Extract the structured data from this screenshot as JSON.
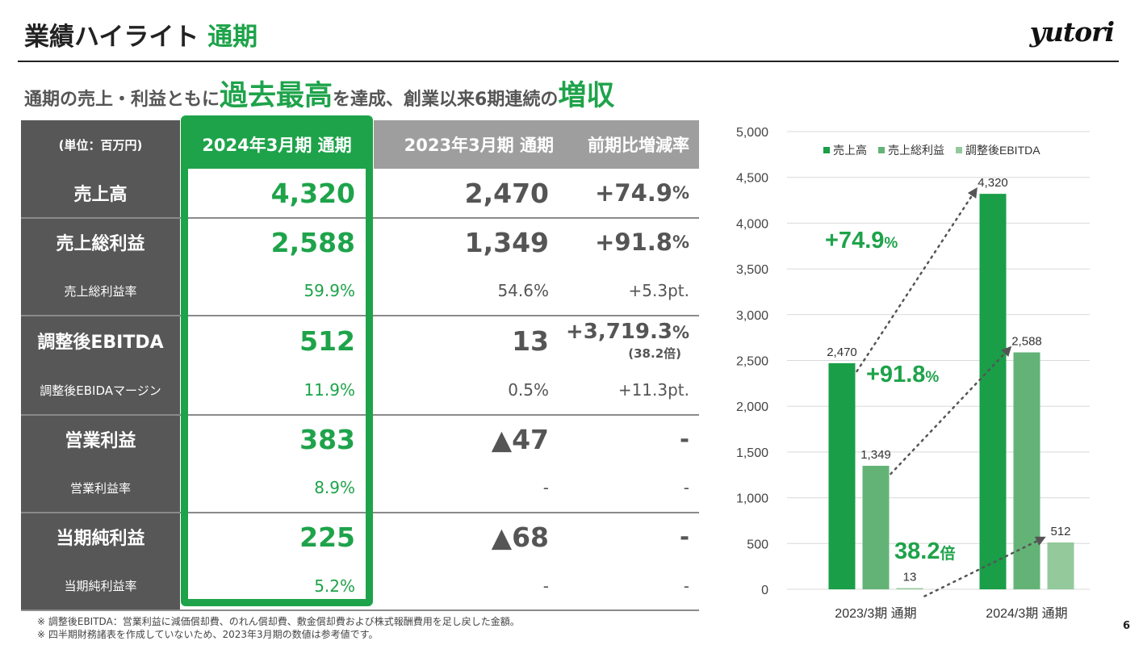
{
  "header": {
    "title": "業績ハイライト",
    "title_accent": "通期",
    "logo": "yutori",
    "headline_1": "通期の売上・利益ともに",
    "headline_2": "過去最高",
    "headline_3": "を達成、創業以来6期連続の",
    "headline_4": "増収"
  },
  "table": {
    "columns": [
      "(単位：百万円)",
      "2024年3月期 通期",
      "2023年3月期 通期",
      "前期比増減率"
    ],
    "rows": [
      {
        "label": "売上高",
        "fy2024": "4,320",
        "fy2023": "2,470",
        "change": "+74.9",
        "change_unit": "%"
      },
      {
        "label": "売上総利益",
        "fy2024": "2,588",
        "fy2023": "1,349",
        "change": "+91.8",
        "change_unit": "%"
      },
      {
        "label": "売上総利益率",
        "fy2024": "59.9%",
        "fy2023": "54.6%",
        "change": "+5.3pt."
      },
      {
        "label": "調整後EBITDA",
        "fy2024": "512",
        "fy2023": "13",
        "change": "+3,719.3",
        "change_unit": "%",
        "change_note": "(38.2倍)"
      },
      {
        "label": "調整後EBIDAマージン",
        "fy2024": "11.9%",
        "fy2023": "0.5%",
        "change": "+11.3pt."
      },
      {
        "label": "営業利益",
        "fy2024": "383",
        "fy2023": "▲47",
        "change": "-"
      },
      {
        "label": "営業利益率",
        "fy2024": "8.9%",
        "fy2023": "-",
        "change": "-"
      },
      {
        "label": "当期純利益",
        "fy2024": "225",
        "fy2023": "▲68",
        "change": "-"
      },
      {
        "label": "当期純利益率",
        "fy2024": "5.2%",
        "fy2023": "-",
        "change": "-"
      }
    ]
  },
  "notes": [
    "※ 調整後EBITDA：営業利益に減価償却費、のれん償却費、敷金償却費および株式報酬費用を足し戻した金額。",
    "※ 四半期財務諸表を作成していないため、2023年3月期の数値は参考値です。"
  ],
  "page_number": "6",
  "colors": {
    "accent": "#1ea34a",
    "header_gray": "#9e9e9e",
    "label_gray": "#575757",
    "bar_sales": "#1a9e48",
    "bar_gross": "#63b377",
    "bar_ebitda": "#93c99b"
  },
  "chart_data": {
    "type": "bar",
    "categories": [
      "2023/3期 通期",
      "2024/3期 通期"
    ],
    "series": [
      {
        "name": "売上高",
        "values": [
          2470,
          4320
        ],
        "labels": [
          "2,470",
          "4,320"
        ],
        "color": "#1a9e48"
      },
      {
        "name": "売上総利益",
        "values": [
          1349,
          2588
        ],
        "labels": [
          "1,349",
          "2,588"
        ],
        "color": "#63b377"
      },
      {
        "name": "調整後EBITDA",
        "values": [
          13,
          512
        ],
        "labels": [
          "13",
          "512"
        ],
        "color": "#93c99b"
      }
    ],
    "ylim": [
      0,
      5000
    ],
    "yticks": [
      0,
      500,
      1000,
      1500,
      2000,
      2500,
      3000,
      3500,
      4000,
      4500,
      5000
    ],
    "ytick_labels": [
      "0",
      "500",
      "1,000",
      "1,500",
      "2,000",
      "2,500",
      "3,000",
      "3,500",
      "4,000",
      "4,500",
      "5,000"
    ],
    "grid": true,
    "legend": "top",
    "annotations": [
      {
        "text": "+74.9",
        "unit": "%",
        "series": 0
      },
      {
        "text": "+91.8",
        "unit": "%",
        "series": 1
      },
      {
        "text": "38.2",
        "unit": "倍",
        "series": 2
      }
    ]
  }
}
